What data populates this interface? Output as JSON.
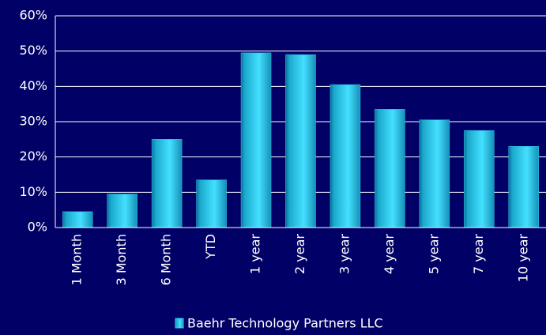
{
  "chart_data": {
    "type": "bar",
    "categories": [
      "1 Month",
      "3 Month",
      "6 Month",
      "YTD",
      "1 year",
      "2 year",
      "3 year",
      "4 year",
      "5 year",
      "7 year",
      "10 year"
    ],
    "series": [
      {
        "name": "Baehr Technology Partners LLC",
        "color": "#33ccee",
        "values": [
          4.5,
          9.5,
          25,
          13.5,
          49.5,
          49,
          40.5,
          33.5,
          30.5,
          27.5,
          23
        ]
      }
    ],
    "ylim": [
      0,
      60
    ],
    "yticks": [
      {
        "value": 0,
        "label": "0%"
      },
      {
        "value": 10,
        "label": "10%"
      },
      {
        "value": 20,
        "label": "20%"
      },
      {
        "value": 30,
        "label": "30%"
      },
      {
        "value": 40,
        "label": "40%"
      },
      {
        "value": 50,
        "label": "50%"
      },
      {
        "value": 60,
        "label": "60%"
      }
    ],
    "grid": true
  }
}
